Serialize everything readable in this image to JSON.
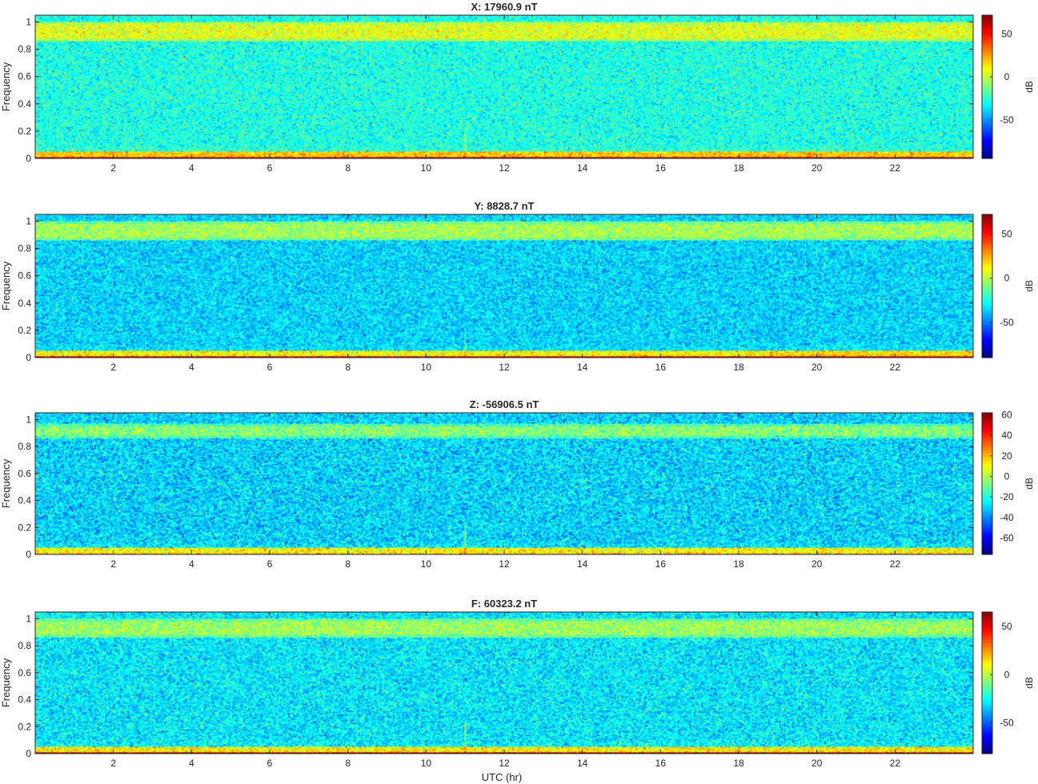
{
  "figure": {
    "xlabel": "UTC (hr)"
  },
  "chart_data": [
    {
      "type": "heatmap",
      "title": "X: 17960.9 nT",
      "xlabel": "",
      "ylabel": "Frequency",
      "xlim": [
        0,
        24
      ],
      "ylim": [
        0,
        1.05
      ],
      "xticks": [
        2,
        4,
        6,
        8,
        10,
        12,
        14,
        16,
        18,
        20,
        22
      ],
      "yticks": [
        0,
        0.2,
        0.4,
        0.6,
        0.8,
        1
      ],
      "colorbar": {
        "label": "dB",
        "clim": [
          -95,
          72
        ],
        "ticks": [
          -50,
          0,
          50
        ]
      },
      "colormap": "jet",
      "features": {
        "background_db": -28,
        "high_band_db": 5,
        "high_band_range": [
          0.86,
          1.0
        ],
        "dc_db": 65,
        "low_edge_db": 18,
        "spike_hr": 11
      }
    },
    {
      "type": "heatmap",
      "title": "Y: 8828.7 nT",
      "xlabel": "",
      "ylabel": "Frequency",
      "xlim": [
        0,
        24
      ],
      "ylim": [
        0,
        1.05
      ],
      "xticks": [
        2,
        4,
        6,
        8,
        10,
        12,
        14,
        16,
        18,
        20,
        22
      ],
      "yticks": [
        0,
        0.2,
        0.4,
        0.6,
        0.8,
        1
      ],
      "colorbar": {
        "label": "dB",
        "clim": [
          -90,
          72
        ],
        "ticks": [
          -50,
          0,
          50
        ]
      },
      "colormap": "jet",
      "features": {
        "background_db": -36,
        "high_band_db": -3,
        "high_band_range": [
          0.86,
          1.0
        ],
        "dc_db": 62,
        "low_edge_db": 12,
        "spike_hr": 11
      }
    },
    {
      "type": "heatmap",
      "title": "Z: -56906.5 nT",
      "xlabel": "",
      "ylabel": "Frequency",
      "xlim": [
        0,
        24
      ],
      "ylim": [
        0,
        1.05
      ],
      "xticks": [
        2,
        4,
        6,
        8,
        10,
        12,
        14,
        16,
        18,
        20,
        22
      ],
      "yticks": [
        0,
        0.2,
        0.4,
        0.6,
        0.8,
        1
      ],
      "colorbar": {
        "label": "dB",
        "clim": [
          -76,
          62
        ],
        "ticks": [
          -60,
          -40,
          -20,
          0,
          20,
          40,
          60
        ]
      },
      "colormap": "jet",
      "features": {
        "background_db": -30,
        "high_band_db": -6,
        "high_band_range": [
          0.86,
          0.97
        ],
        "dc_db": 20,
        "low_edge_db": 10,
        "spike_hr": 11
      }
    },
    {
      "type": "heatmap",
      "title": "F: 60323.2 nT",
      "xlabel": "UTC (hr)",
      "ylabel": "Frequency",
      "xlim": [
        0,
        24
      ],
      "ylim": [
        0,
        1.05
      ],
      "xticks": [
        2,
        4,
        6,
        8,
        10,
        12,
        14,
        16,
        18,
        20,
        22
      ],
      "yticks": [
        0,
        0.2,
        0.4,
        0.6,
        0.8,
        1
      ],
      "colorbar": {
        "label": "dB",
        "clim": [
          -82,
          65
        ],
        "ticks": [
          -50,
          0,
          50
        ]
      },
      "colormap": "jet",
      "features": {
        "background_db": -30,
        "high_band_db": -4,
        "high_band_range": [
          0.86,
          1.0
        ],
        "dc_db": 58,
        "low_edge_db": 12,
        "spike_hr": 11
      }
    }
  ]
}
